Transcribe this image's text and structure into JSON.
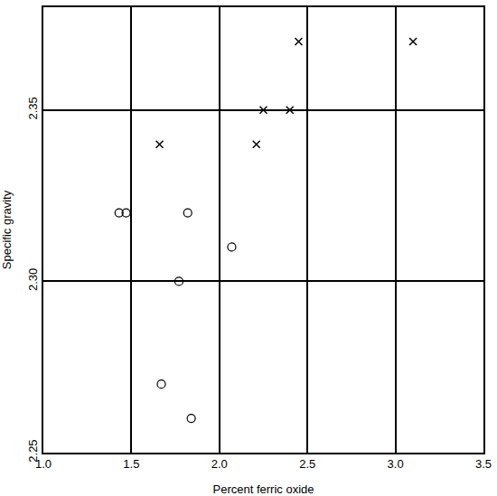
{
  "chart_data": {
    "type": "scatter",
    "x_label": "Percent ferric oxide",
    "y_label": "Specific gravity",
    "series": [
      {
        "color": "#000000",
        "marker": "x",
        "x": [
          1.66,
          2.21,
          2.25,
          2.4,
          2.45,
          3.1
        ],
        "values": [
          2.34,
          2.34,
          2.35,
          2.35,
          2.37,
          2.37
        ]
      },
      {
        "color": "#000000",
        "marker": "circle-open",
        "x": [
          1.43,
          1.47,
          1.82,
          2.07,
          1.77,
          1.67,
          1.84
        ],
        "values": [
          2.32,
          2.32,
          2.32,
          2.31,
          2.3,
          2.27,
          2.26
        ]
      }
    ],
    "xlim": [
      1.0,
      3.5
    ],
    "xticks": [
      {
        "value": 1.0,
        "label": "1.0"
      },
      1.5,
      {
        "value": 2.0,
        "label": "2.0"
      },
      2.5,
      {
        "value": 3.0,
        "label": "3.0"
      },
      3.5
    ],
    "ylim": [
      2.25,
      2.38
    ],
    "yticks": [
      2.25,
      {
        "value": 2.3,
        "label": "2.30"
      },
      2.35
    ],
    "grid": true
  }
}
